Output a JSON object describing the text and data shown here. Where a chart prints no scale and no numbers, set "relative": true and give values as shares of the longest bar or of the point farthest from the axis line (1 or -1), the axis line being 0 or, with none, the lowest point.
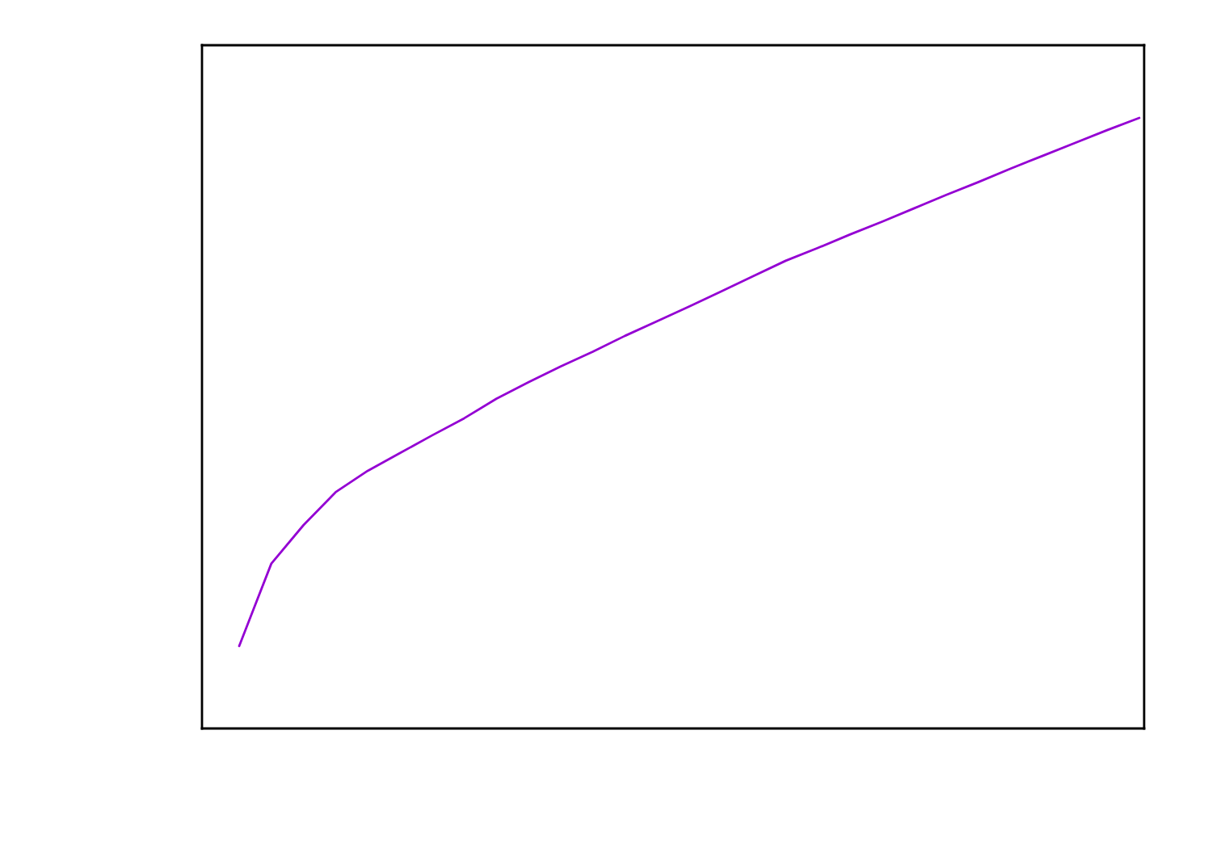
{
  "chart_data": {
    "type": "line",
    "relative": true,
    "categories": [
      null,
      null,
      null,
      null,
      null,
      null,
      null,
      null,
      null,
      null,
      null,
      null,
      null,
      null,
      null,
      null,
      null,
      null,
      null,
      null,
      null,
      null,
      null,
      null,
      null,
      null,
      null,
      null,
      null
    ],
    "series": [
      {
        "color": "#9400d3",
        "values": [
          0.135,
          0.27,
          0.333,
          0.387,
          0.422,
          0.451,
          0.48,
          0.508,
          0.54,
          0.567,
          0.593,
          0.617,
          0.643,
          0.667,
          0.691,
          0.716,
          0.741,
          0.766,
          0.787,
          0.809,
          0.83,
          0.852,
          0.874,
          0.895,
          0.917,
          0.938,
          0.959,
          0.98,
          1.0
        ]
      }
    ],
    "grid": false,
    "legend": false,
    "marker": "none",
    "line_style": "solid"
  }
}
